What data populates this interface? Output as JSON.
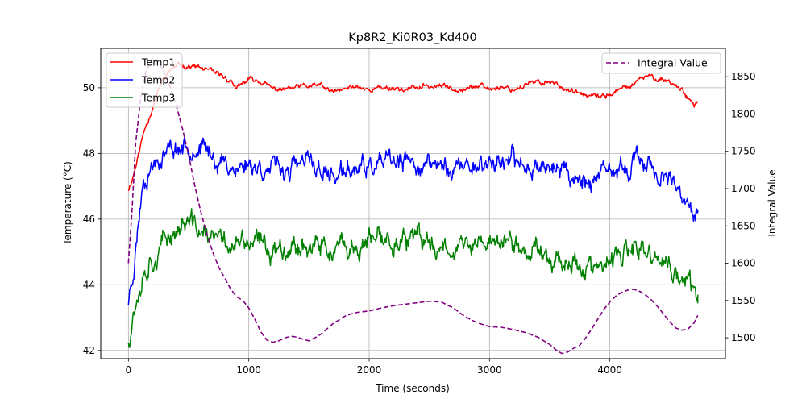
{
  "chart_data": {
    "type": "line",
    "title": "Kp8R2_Ki0R03_Kd400",
    "xlabel": "Time (seconds)",
    "ylabel": "Temperature (°C)",
    "y2label": "Integral Value",
    "xlim": [
      -230,
      4960
    ],
    "ylim": [
      41.75,
      51.2
    ],
    "y2lim": [
      1472,
      1888
    ],
    "x_ticks": [
      0,
      1000,
      2000,
      3000,
      4000
    ],
    "y_ticks": [
      42,
      44,
      46,
      48,
      50
    ],
    "y2_ticks": [
      1500,
      1550,
      1600,
      1650,
      1700,
      1750,
      1800,
      1850
    ],
    "grid": true,
    "legend_left": "top-left",
    "legend_right": "top-right",
    "series": [
      {
        "name": "Temp1",
        "axis": "left",
        "color": "#ff0000",
        "style": "solid",
        "noise": 0.1,
        "seed": 11,
        "x": [
          0,
          30,
          80,
          130,
          200,
          280,
          360,
          450,
          520,
          600,
          700,
          800,
          860,
          900,
          950,
          1000,
          1100,
          1200,
          1300,
          1400,
          1500,
          1600,
          1700,
          1800,
          1900,
          2000,
          2100,
          2200,
          2300,
          2400,
          2500,
          2600,
          2700,
          2800,
          2900,
          3000,
          3100,
          3200,
          3300,
          3400,
          3500,
          3600,
          3700,
          3800,
          3900,
          4000,
          4100,
          4200,
          4300,
          4400,
          4500,
          4550,
          4600,
          4650,
          4700,
          4730
        ],
        "y": [
          46.9,
          47.2,
          47.9,
          48.7,
          49.4,
          50.2,
          50.6,
          50.7,
          50.65,
          50.6,
          50.45,
          50.3,
          50.2,
          49.95,
          50.1,
          50.25,
          50.2,
          49.95,
          49.95,
          50.0,
          50.05,
          50.05,
          49.85,
          49.95,
          50.05,
          49.95,
          50.0,
          50.0,
          49.95,
          50.0,
          50.05,
          50.05,
          50.0,
          50.0,
          50.05,
          49.95,
          50.05,
          49.95,
          50.1,
          50.15,
          50.2,
          50.05,
          49.85,
          49.75,
          49.7,
          49.8,
          49.95,
          50.1,
          50.35,
          50.3,
          50.2,
          50.05,
          49.95,
          49.75,
          49.45,
          49.55
        ]
      },
      {
        "name": "Temp2",
        "axis": "left",
        "color": "#0000ff",
        "style": "solid",
        "noise": 0.38,
        "seed": 23,
        "x": [
          0,
          40,
          80,
          120,
          180,
          250,
          320,
          400,
          470,
          530,
          600,
          700,
          800,
          900,
          1000,
          1100,
          1200,
          1300,
          1400,
          1500,
          1600,
          1700,
          1800,
          1900,
          2000,
          2100,
          2200,
          2300,
          2400,
          2500,
          2600,
          2700,
          2800,
          2900,
          3000,
          3100,
          3200,
          3300,
          3400,
          3500,
          3600,
          3700,
          3800,
          3900,
          4000,
          4100,
          4200,
          4300,
          4400,
          4500,
          4550,
          4600,
          4650,
          4700,
          4730
        ],
        "y": [
          43.5,
          44.5,
          45.8,
          47.2,
          47.6,
          47.9,
          48.1,
          48.2,
          48.2,
          48.3,
          48.15,
          47.9,
          47.7,
          47.55,
          47.7,
          47.6,
          47.5,
          47.5,
          47.6,
          47.7,
          47.5,
          47.3,
          47.4,
          47.5,
          47.55,
          47.6,
          47.7,
          47.65,
          47.7,
          47.6,
          47.65,
          47.55,
          47.6,
          47.7,
          47.7,
          47.8,
          47.7,
          47.6,
          47.75,
          47.6,
          47.5,
          47.3,
          47.2,
          47.2,
          47.3,
          47.5,
          47.7,
          47.8,
          47.4,
          47.0,
          46.8,
          46.6,
          46.3,
          46.05,
          46.2
        ]
      },
      {
        "name": "Temp3",
        "axis": "left",
        "color": "#008000",
        "style": "solid",
        "noise": 0.42,
        "seed": 37,
        "x": [
          0,
          40,
          80,
          120,
          180,
          250,
          320,
          400,
          470,
          530,
          600,
          700,
          800,
          900,
          1000,
          1100,
          1200,
          1300,
          1400,
          1500,
          1600,
          1700,
          1800,
          1900,
          2000,
          2100,
          2200,
          2300,
          2400,
          2500,
          2600,
          2700,
          2800,
          2900,
          3000,
          3100,
          3200,
          3300,
          3400,
          3500,
          3600,
          3700,
          3800,
          3900,
          4000,
          4100,
          4200,
          4300,
          4400,
          4500,
          4550,
          4600,
          4650,
          4700,
          4730
        ],
        "y": [
          42.3,
          43.2,
          43.9,
          44.4,
          44.8,
          45.0,
          45.4,
          45.7,
          45.9,
          45.8,
          45.6,
          45.4,
          45.3,
          45.2,
          45.25,
          45.2,
          45.1,
          45.2,
          45.3,
          45.2,
          45.1,
          45.0,
          45.05,
          45.1,
          45.25,
          45.3,
          45.4,
          45.35,
          45.3,
          45.25,
          45.2,
          45.25,
          45.15,
          45.2,
          45.3,
          45.35,
          45.2,
          45.0,
          45.15,
          44.9,
          44.8,
          44.7,
          44.5,
          44.4,
          44.6,
          44.9,
          45.0,
          44.9,
          44.8,
          44.5,
          44.3,
          44.1,
          44.0,
          43.8,
          43.7
        ]
      },
      {
        "name": "Integral Value",
        "axis": "right",
        "color": "#800080",
        "style": "dashed",
        "noise": 0,
        "seed": 0,
        "x": [
          0,
          30,
          60,
          100,
          150,
          200,
          250,
          300,
          350,
          400,
          450,
          500,
          550,
          600,
          650,
          700,
          750,
          800,
          850,
          900,
          950,
          1000,
          1050,
          1100,
          1150,
          1200,
          1250,
          1300,
          1350,
          1400,
          1450,
          1500,
          1550,
          1600,
          1650,
          1700,
          1750,
          1800,
          1850,
          1900,
          1950,
          2000,
          2100,
          2200,
          2300,
          2400,
          2500,
          2600,
          2700,
          2800,
          2900,
          3000,
          3100,
          3200,
          3300,
          3400,
          3500,
          3550,
          3600,
          3650,
          3700,
          3750,
          3800,
          3850,
          3900,
          3950,
          4000,
          4050,
          4100,
          4150,
          4200,
          4250,
          4300,
          4350,
          4400,
          4450,
          4500,
          4550,
          4600,
          4650,
          4700,
          4730
        ],
        "y": [
          1600,
          1670,
          1760,
          1820,
          1860,
          1875,
          1870,
          1855,
          1835,
          1810,
          1780,
          1745,
          1705,
          1670,
          1640,
          1615,
          1595,
          1580,
          1565,
          1555,
          1550,
          1540,
          1525,
          1508,
          1497,
          1494,
          1496,
          1500,
          1502,
          1501,
          1498,
          1496,
          1500,
          1505,
          1512,
          1519,
          1524,
          1529,
          1532,
          1534,
          1535,
          1536,
          1540,
          1543,
          1545,
          1547,
          1549,
          1548,
          1540,
          1528,
          1520,
          1515,
          1514,
          1511,
          1507,
          1501,
          1491,
          1484,
          1479,
          1481,
          1486,
          1490,
          1500,
          1512,
          1525,
          1538,
          1548,
          1556,
          1561,
          1564,
          1565,
          1562,
          1557,
          1550,
          1541,
          1531,
          1521,
          1513,
          1510,
          1512,
          1520,
          1530
        ]
      }
    ]
  }
}
